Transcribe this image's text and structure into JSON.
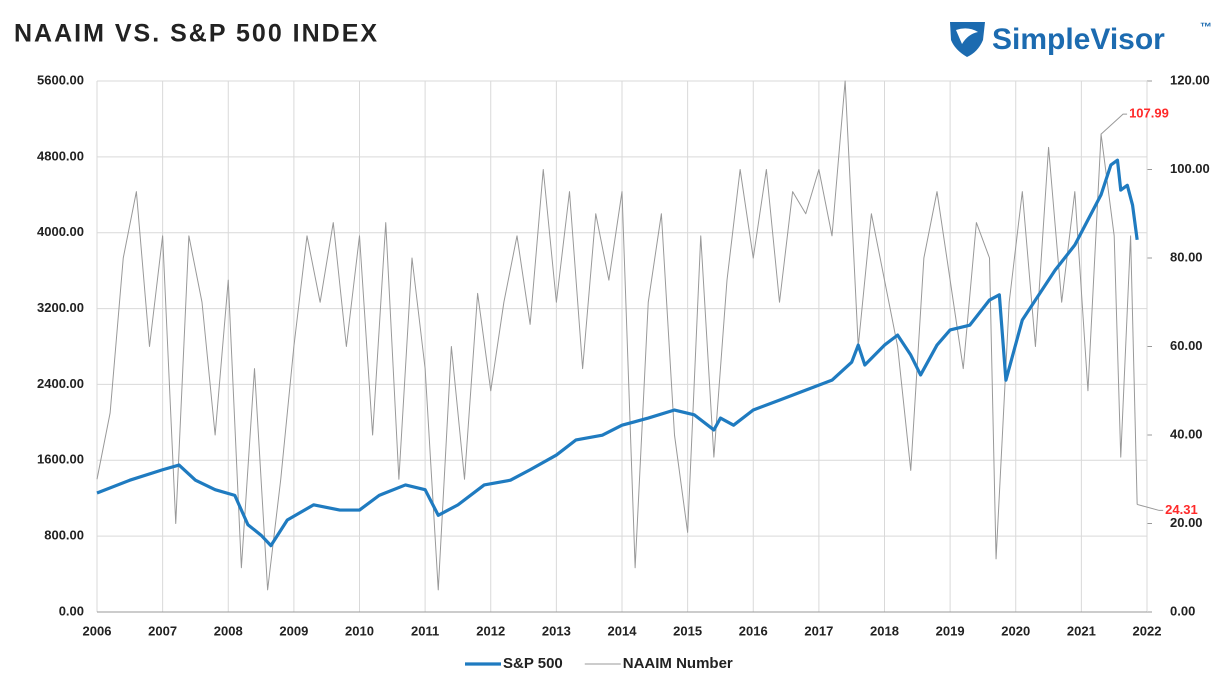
{
  "chart_data": {
    "type": "line",
    "title": "NAAIM VS. S&P 500 INDEX",
    "logo": "SimpleVisor",
    "logo_mark": "™",
    "legend": "bottom",
    "grid": true,
    "xlim": [
      2006,
      2022
    ],
    "xticks": [
      2006,
      2007,
      2008,
      2009,
      2010,
      2011,
      2012,
      2013,
      2014,
      2015,
      2016,
      2017,
      2018,
      2019,
      2020,
      2021,
      2022
    ],
    "ylim": [
      0,
      5600
    ],
    "yticks": [
      {
        "value": 0,
        "label": "0.00"
      },
      {
        "value": 800,
        "label": "800.00"
      },
      {
        "value": 1600,
        "label": "1600.00"
      },
      {
        "value": 2400,
        "label": "2400.00"
      },
      {
        "value": 3200,
        "label": "3200.00"
      },
      {
        "value": 4000,
        "label": "4000.00"
      },
      {
        "value": 4800,
        "label": "4800.00"
      },
      {
        "value": 5600,
        "label": "5600.00"
      }
    ],
    "y2lim": [
      0,
      120
    ],
    "y2ticks": [
      {
        "value": 0,
        "label": "0.00"
      },
      {
        "value": 20,
        "label": "20.00"
      },
      {
        "value": 40,
        "label": "40.00"
      },
      {
        "value": 60,
        "label": "60.00"
      },
      {
        "value": 80,
        "label": "80.00"
      },
      {
        "value": 100,
        "label": "100.00"
      },
      {
        "value": 120,
        "label": "120.00"
      }
    ],
    "series": [
      {
        "name": "S&P 500",
        "color": "#1f7bc0",
        "axis": "y",
        "x": [
          2006.0,
          2006.5,
          2007.0,
          2007.25,
          2007.5,
          2007.8,
          2008.1,
          2008.3,
          2008.5,
          2008.65,
          2008.9,
          2009.3,
          2009.7,
          2010.0,
          2010.3,
          2010.7,
          2011.0,
          2011.2,
          2011.5,
          2011.9,
          2012.3,
          2012.6,
          2013.0,
          2013.3,
          2013.7,
          2014.0,
          2014.4,
          2014.8,
          2015.1,
          2015.4,
          2015.5,
          2015.7,
          2016.0,
          2016.4,
          2016.8,
          2017.2,
          2017.5,
          2017.6,
          2017.7,
          2018.0,
          2018.2,
          2018.4,
          2018.55,
          2018.8,
          2019.0,
          2019.3,
          2019.6,
          2019.75,
          2019.85,
          2020.1,
          2020.3,
          2020.6,
          2020.9,
          2021.1,
          2021.3,
          2021.45,
          2021.55,
          2021.6,
          2021.7,
          2021.78,
          2021.85
        ],
        "values": [
          1255,
          1390,
          1500,
          1550,
          1390,
          1290,
          1230,
          920,
          810,
          700,
          970,
          1130,
          1075,
          1075,
          1230,
          1340,
          1290,
          1020,
          1130,
          1340,
          1390,
          1500,
          1655,
          1815,
          1865,
          1970,
          2045,
          2130,
          2080,
          1920,
          2045,
          1970,
          2130,
          2235,
          2340,
          2445,
          2635,
          2815,
          2605,
          2815,
          2920,
          2710,
          2500,
          2815,
          2975,
          3025,
          3290,
          3345,
          2445,
          3080,
          3290,
          3605,
          3870,
          4135,
          4400,
          4715,
          4765,
          4450,
          4500,
          4290,
          3925
        ]
      },
      {
        "name": "NAAIM Number",
        "color": "#999999",
        "axis": "y2",
        "x": [
          2006.0,
          2006.2,
          2006.4,
          2006.6,
          2006.8,
          2007.0,
          2007.2,
          2007.4,
          2007.6,
          2007.8,
          2008.0,
          2008.2,
          2008.4,
          2008.6,
          2008.8,
          2009.0,
          2009.2,
          2009.4,
          2009.6,
          2009.8,
          2010.0,
          2010.2,
          2010.4,
          2010.6,
          2010.8,
          2011.0,
          2011.2,
          2011.4,
          2011.6,
          2011.8,
          2012.0,
          2012.2,
          2012.4,
          2012.6,
          2012.8,
          2013.0,
          2013.2,
          2013.4,
          2013.6,
          2013.8,
          2014.0,
          2014.2,
          2014.4,
          2014.6,
          2014.8,
          2015.0,
          2015.2,
          2015.4,
          2015.6,
          2015.8,
          2016.0,
          2016.2,
          2016.4,
          2016.6,
          2016.8,
          2017.0,
          2017.2,
          2017.4,
          2017.6,
          2017.8,
          2018.0,
          2018.2,
          2018.4,
          2018.6,
          2018.8,
          2019.0,
          2019.2,
          2019.4,
          2019.6,
          2019.7,
          2019.9,
          2020.1,
          2020.3,
          2020.5,
          2020.7,
          2020.9,
          2021.1,
          2021.3,
          2021.5,
          2021.6,
          2021.75,
          2021.85
        ],
        "values": [
          30,
          45,
          80,
          95,
          60,
          85,
          20,
          85,
          70,
          40,
          75,
          10,
          55,
          5,
          30,
          60,
          85,
          70,
          88,
          60,
          85,
          40,
          88,
          30,
          80,
          55,
          5,
          60,
          30,
          72,
          50,
          70,
          85,
          65,
          100,
          70,
          95,
          55,
          90,
          75,
          95,
          10,
          70,
          90,
          40,
          18,
          85,
          35,
          75,
          100,
          80,
          100,
          70,
          95,
          90,
          100,
          85,
          120,
          60,
          90,
          75,
          60,
          32,
          80,
          95,
          75,
          55,
          88,
          80,
          12,
          70,
          95,
          60,
          105,
          70,
          95,
          50,
          107.99,
          85,
          35,
          85,
          24.31
        ]
      }
    ],
    "annotations": [
      {
        "text": "107.99",
        "x": 2021.3,
        "y": 107.99,
        "axis": "y2",
        "color": "#ff2a2a"
      },
      {
        "text": "24.31",
        "x": 2021.85,
        "y": 24.31,
        "axis": "y2",
        "color": "#ff2a2a"
      }
    ]
  }
}
